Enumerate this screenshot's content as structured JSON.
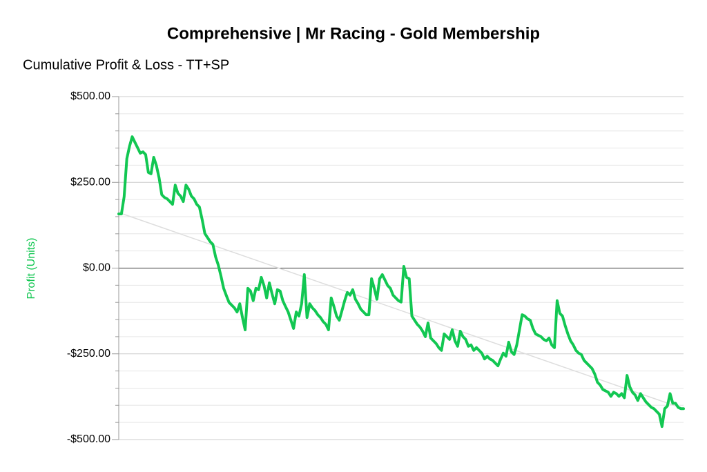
{
  "chart_data": {
    "type": "line",
    "title": "Comprehensive | Mr Racing - Gold Membership",
    "subtitle": "Cumulative Profit & Loss - TT+SP",
    "y_label": "Profit (Units)",
    "ylim": [
      -500,
      500
    ],
    "yticks": [
      {
        "value": 500,
        "label": "$500.00"
      },
      {
        "value": 250,
        "label": "$250.00"
      },
      {
        "value": 0,
        "label": "$0.00"
      },
      {
        "value": -250,
        "label": "-$250.00"
      },
      {
        "value": -500,
        "label": "-$500.00"
      }
    ],
    "minor_yticks": [
      450,
      400,
      350,
      300,
      200,
      150,
      100,
      50,
      -50,
      -100,
      -150,
      -200,
      -300,
      -350,
      -400,
      -450
    ],
    "grid": true,
    "series": [
      {
        "color": "#12c752",
        "values": [
          158,
          158,
          208,
          319,
          355,
          383,
          367,
          351,
          335,
          339,
          331,
          279,
          275,
          323,
          299,
          263,
          214,
          206,
          202,
          194,
          186,
          242,
          218,
          210,
          194,
          242,
          230,
          210,
          202,
          186,
          178,
          142,
          101,
          89,
          77,
          69,
          33,
          9,
          -23,
          -59,
          -80,
          -100,
          -108,
          -116,
          -128,
          -104,
          -144,
          -180,
          -59,
          -67,
          -95,
          -59,
          -63,
          -27,
          -51,
          -87,
          -43,
          -75,
          -104,
          -63,
          -67,
          -95,
          -112,
          -128,
          -152,
          -176,
          -128,
          -140,
          -104,
          -19,
          -144,
          -104,
          -116,
          -124,
          -136,
          -144,
          -156,
          -164,
          -180,
          -87,
          -112,
          -140,
          -152,
          -124,
          -95,
          -71,
          -79,
          -63,
          -91,
          -104,
          -120,
          -128,
          -136,
          -136,
          -31,
          -59,
          -91,
          -31,
          -19,
          -35,
          -51,
          -59,
          -79,
          -87,
          -95,
          -99,
          5,
          -27,
          -31,
          -140,
          -152,
          -164,
          -172,
          -184,
          -200,
          -160,
          -204,
          -212,
          -220,
          -232,
          -240,
          -192,
          -200,
          -208,
          -180,
          -212,
          -228,
          -184,
          -200,
          -208,
          -228,
          -224,
          -240,
          -232,
          -240,
          -248,
          -265,
          -257,
          -265,
          -269,
          -277,
          -285,
          -265,
          -248,
          -257,
          -216,
          -244,
          -252,
          -224,
          -180,
          -136,
          -140,
          -148,
          -152,
          -176,
          -192,
          -196,
          -200,
          -208,
          -212,
          -204,
          -224,
          -232,
          -95,
          -132,
          -140,
          -168,
          -192,
          -212,
          -224,
          -240,
          -248,
          -252,
          -269,
          -277,
          -285,
          -293,
          -309,
          -333,
          -341,
          -354,
          -358,
          -362,
          -374,
          -362,
          -366,
          -374,
          -366,
          -378,
          -313,
          -346,
          -362,
          -370,
          -386,
          -366,
          -378,
          -390,
          -398,
          -406,
          -410,
          -418,
          -426,
          -462,
          -410,
          -402,
          -366,
          -394,
          -394,
          -406,
          -410,
          -410
        ]
      }
    ],
    "trend_line": {
      "color": "#dddddd",
      "values": [
        162,
        -410
      ]
    }
  }
}
